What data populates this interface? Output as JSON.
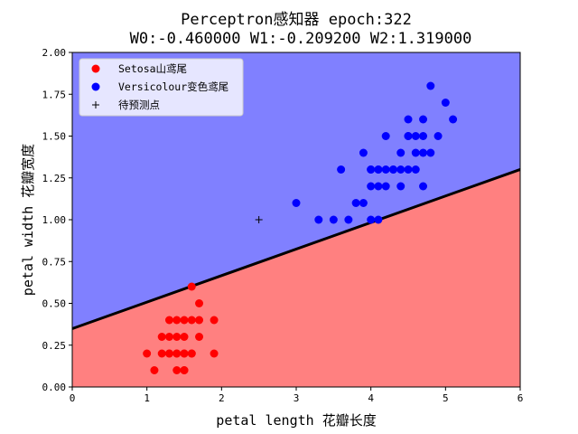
{
  "chart_data": {
    "type": "scatter",
    "title": "Perceptron感知器 epoch:322",
    "subtitle": "W0:-0.460000 W1:-0.209200 W2:1.319000",
    "xlabel": "petal length 花瓣长度",
    "ylabel": "petal width 花瓣宽度",
    "xlim": [
      0,
      6
    ],
    "ylim": [
      0,
      2
    ],
    "xticks": [
      "0",
      "1",
      "2",
      "3",
      "4",
      "5",
      "6"
    ],
    "yticks": [
      "0.00",
      "0.25",
      "0.50",
      "0.75",
      "1.00",
      "1.25",
      "1.50",
      "1.75",
      "2.00"
    ],
    "grid": false,
    "legend_position": "top-left",
    "decision_boundary": {
      "w0": -0.46,
      "w1": -0.2092,
      "w2": 1.319,
      "color": "#000000"
    },
    "regions": {
      "upper_color": "#8080ff",
      "lower_color": "#ff8080"
    },
    "series": [
      {
        "name": "Setosa山鸢尾",
        "marker": "circle",
        "color": "#ff0000",
        "x": [
          1.0,
          1.1,
          1.2,
          1.2,
          1.3,
          1.3,
          1.3,
          1.3,
          1.4,
          1.4,
          1.4,
          1.4,
          1.4,
          1.5,
          1.5,
          1.5,
          1.5,
          1.5,
          1.5,
          1.6,
          1.6,
          1.6,
          1.6,
          1.7,
          1.7,
          1.7,
          1.9,
          1.9
        ],
        "y": [
          0.2,
          0.1,
          0.2,
          0.3,
          0.2,
          0.3,
          0.4,
          0.2,
          0.2,
          0.3,
          0.1,
          0.2,
          0.4,
          0.2,
          0.4,
          0.1,
          0.3,
          0.2,
          0.1,
          0.2,
          0.6,
          0.4,
          0.2,
          0.3,
          0.5,
          0.4,
          0.2,
          0.4
        ]
      },
      {
        "name": "Versicolour变色鸢尾",
        "marker": "circle",
        "color": "#0000ff",
        "x": [
          3.0,
          3.3,
          3.5,
          3.6,
          3.7,
          3.8,
          3.9,
          3.9,
          4.0,
          4.0,
          4.0,
          4.1,
          4.1,
          4.1,
          4.2,
          4.2,
          4.2,
          4.3,
          4.4,
          4.4,
          4.4,
          4.5,
          4.5,
          4.5,
          4.5,
          4.6,
          4.6,
          4.6,
          4.7,
          4.7,
          4.7,
          4.7,
          4.8,
          4.8,
          4.9,
          5.0,
          5.1,
          4.0,
          4.3,
          4.1
        ],
        "y": [
          1.1,
          1.0,
          1.0,
          1.3,
          1.0,
          1.1,
          1.1,
          1.4,
          1.0,
          1.2,
          1.3,
          1.0,
          1.3,
          1.2,
          1.2,
          1.3,
          1.5,
          1.3,
          1.3,
          1.4,
          1.2,
          1.3,
          1.5,
          1.5,
          1.6,
          1.3,
          1.4,
          1.5,
          1.2,
          1.4,
          1.5,
          1.6,
          1.4,
          1.8,
          1.5,
          1.7,
          1.6,
          1.3,
          1.3,
          1.3
        ]
      },
      {
        "name": "待预测点",
        "marker": "plus",
        "color": "#000000",
        "x": [
          2.5
        ],
        "y": [
          1.0
        ]
      }
    ]
  }
}
